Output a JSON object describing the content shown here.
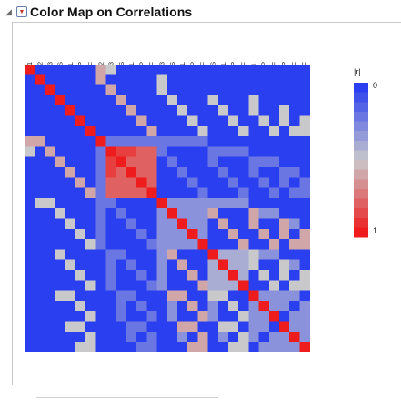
{
  "title": "Color Map on Correlations",
  "chart_data": {
    "type": "heatmap",
    "title": "Color Map on Correlations",
    "legend": {
      "title": "|r|",
      "min_label": "0",
      "max_label": "1",
      "position": "right"
    },
    "colors": {
      "low": "#2a3ff0",
      "mid": "#c9c9cc",
      "high": "#ee1c1c"
    },
    "variables": [
      "A1",
      "A2",
      "A3",
      "BS",
      "BL",
      "P",
      "F",
      "A1*A2",
      "A1*A3",
      "A1*BS",
      "A1*BL",
      "A1*P",
      "A1*F",
      "A2*A3",
      "A2*BS",
      "A2*BL",
      "A2*P",
      "A2*F",
      "A3*BS",
      "A3*BL",
      "A3*P",
      "A3*F",
      "BS*BL",
      "BS*P",
      "BS*F",
      "BL*P",
      "BL*F",
      "P*F"
    ],
    "matrix": [
      [
        1,
        0,
        0,
        0,
        0,
        0,
        0,
        0.6,
        0.5,
        0,
        0,
        0,
        0,
        0,
        0,
        0,
        0,
        0,
        0,
        0,
        0,
        0,
        0,
        0,
        0,
        0,
        0,
        0
      ],
      [
        0,
        1,
        0,
        0,
        0,
        0,
        0,
        0.6,
        0,
        0,
        0,
        0,
        0,
        0.5,
        0,
        0,
        0,
        0,
        0,
        0,
        0,
        0,
        0,
        0,
        0,
        0,
        0,
        0
      ],
      [
        0,
        0,
        1,
        0,
        0,
        0,
        0,
        0,
        0.6,
        0,
        0,
        0,
        0,
        0.5,
        0,
        0,
        0,
        0,
        0,
        0,
        0,
        0,
        0,
        0,
        0,
        0,
        0,
        0
      ],
      [
        0,
        0,
        0,
        1,
        0,
        0,
        0,
        0,
        0,
        0.6,
        0,
        0,
        0,
        0,
        0.5,
        0,
        0,
        0,
        0.5,
        0,
        0,
        0,
        0.5,
        0,
        0,
        0,
        0,
        0
      ],
      [
        0,
        0,
        0,
        0,
        1,
        0,
        0,
        0,
        0,
        0,
        0.6,
        0,
        0,
        0,
        0,
        0.5,
        0,
        0,
        0,
        0.5,
        0,
        0,
        0.5,
        0,
        0,
        0.5,
        0,
        0
      ],
      [
        0,
        0,
        0,
        0,
        0,
        1,
        0,
        0,
        0,
        0,
        0,
        0.6,
        0,
        0,
        0,
        0,
        0.5,
        0,
        0,
        0,
        0.5,
        0,
        0,
        0.5,
        0,
        0.5,
        0,
        0.5
      ],
      [
        0,
        0,
        0,
        0,
        0,
        0,
        1,
        0,
        0,
        0,
        0,
        0,
        0.6,
        0,
        0,
        0,
        0,
        0.5,
        0,
        0,
        0,
        0.5,
        0,
        0,
        0.5,
        0,
        0.5,
        0.5
      ],
      [
        0.6,
        0.6,
        0,
        0,
        0,
        0,
        0,
        1,
        0.2,
        0.2,
        0.2,
        0.2,
        0.2,
        0.2,
        0.2,
        0.2,
        0.2,
        0.2,
        0,
        0,
        0,
        0,
        0,
        0,
        0,
        0,
        0,
        0
      ],
      [
        0.5,
        0,
        0.6,
        0,
        0,
        0,
        0,
        0.2,
        1,
        0.9,
        0.9,
        0.8,
        0.8,
        0.2,
        0,
        0,
        0,
        0,
        0.2,
        0.2,
        0.2,
        0.2,
        0,
        0,
        0,
        0,
        0,
        0
      ],
      [
        0,
        0,
        0,
        0.6,
        0,
        0,
        0,
        0.2,
        0.9,
        1,
        0.8,
        0.8,
        0.8,
        0,
        0.2,
        0,
        0,
        0,
        0.2,
        0,
        0,
        0,
        0.2,
        0.2,
        0.2,
        0,
        0,
        0
      ],
      [
        0,
        0,
        0,
        0,
        0.6,
        0,
        0,
        0.2,
        0.9,
        0.8,
        1,
        0.8,
        0.8,
        0,
        0,
        0.2,
        0,
        0,
        0,
        0.2,
        0,
        0,
        0.2,
        0,
        0,
        0.2,
        0.2,
        0
      ],
      [
        0,
        0,
        0,
        0,
        0,
        0.6,
        0,
        0.2,
        0.8,
        0.8,
        0.8,
        1,
        0.8,
        0,
        0,
        0,
        0.2,
        0,
        0,
        0,
        0.2,
        0,
        0,
        0.2,
        0,
        0.2,
        0,
        0.2
      ],
      [
        0,
        0,
        0,
        0,
        0,
        0,
        0.6,
        0.2,
        0.8,
        0.8,
        0.8,
        0.8,
        1,
        0,
        0,
        0,
        0,
        0.2,
        0,
        0,
        0,
        0.2,
        0,
        0,
        0.2,
        0,
        0.2,
        0.2
      ],
      [
        0,
        0.5,
        0.5,
        0,
        0,
        0,
        0,
        0.2,
        0.2,
        0,
        0,
        0,
        0,
        1,
        0.3,
        0.3,
        0.3,
        0.3,
        0.3,
        0.3,
        0.3,
        0.3,
        0,
        0,
        0,
        0,
        0,
        0
      ],
      [
        0,
        0,
        0,
        0.5,
        0,
        0,
        0,
        0.2,
        0,
        0.2,
        0,
        0,
        0,
        0.3,
        1,
        0.3,
        0.3,
        0.3,
        0.6,
        0,
        0,
        0,
        0.6,
        0.3,
        0.3,
        0,
        0,
        0
      ],
      [
        0,
        0,
        0,
        0,
        0.5,
        0,
        0,
        0.2,
        0,
        0,
        0.2,
        0,
        0,
        0.3,
        0.3,
        1,
        0.3,
        0.3,
        0,
        0.6,
        0,
        0,
        0.6,
        0,
        0,
        0.6,
        0.3,
        0
      ],
      [
        0,
        0,
        0,
        0,
        0,
        0.5,
        0,
        0.2,
        0,
        0,
        0,
        0.2,
        0,
        0.3,
        0.3,
        0.3,
        1,
        0.3,
        0,
        0,
        0.6,
        0,
        0,
        0.6,
        0,
        0.6,
        0,
        0.6
      ],
      [
        0,
        0,
        0,
        0,
        0,
        0,
        0.5,
        0.2,
        0,
        0,
        0,
        0,
        0.2,
        0.3,
        0.3,
        0.3,
        0.3,
        1,
        0,
        0,
        0,
        0.6,
        0,
        0,
        0.6,
        0,
        0.6,
        0.6
      ],
      [
        0,
        0,
        0,
        0.5,
        0,
        0,
        0,
        0,
        0.2,
        0.2,
        0,
        0,
        0,
        0.3,
        0.6,
        0,
        0,
        0,
        1,
        0.4,
        0.4,
        0.4,
        0.5,
        0.3,
        0.3,
        0,
        0,
        0
      ],
      [
        0,
        0,
        0,
        0,
        0.5,
        0,
        0,
        0,
        0.2,
        0,
        0.2,
        0,
        0,
        0.3,
        0,
        0.6,
        0,
        0,
        0.4,
        1,
        0.4,
        0.4,
        0.5,
        0,
        0,
        0.5,
        0.3,
        0
      ],
      [
        0,
        0,
        0,
        0,
        0,
        0.5,
        0,
        0,
        0.2,
        0,
        0,
        0.2,
        0,
        0.3,
        0,
        0,
        0.6,
        0,
        0.4,
        0.4,
        1,
        0.4,
        0,
        0.5,
        0,
        0.5,
        0,
        0.5
      ],
      [
        0,
        0,
        0,
        0,
        0,
        0,
        0.5,
        0,
        0.2,
        0,
        0,
        0,
        0.2,
        0.3,
        0,
        0,
        0,
        0.6,
        0.4,
        0.4,
        0.4,
        1,
        0,
        0,
        0.5,
        0,
        0.5,
        0.5
      ],
      [
        0,
        0,
        0,
        0.5,
        0.5,
        0,
        0,
        0,
        0,
        0.2,
        0.2,
        0,
        0,
        0,
        0.6,
        0.6,
        0,
        0,
        0.5,
        0.5,
        0,
        0,
        1,
        0.3,
        0.3,
        0.3,
        0.3,
        0
      ],
      [
        0,
        0,
        0,
        0,
        0,
        0.5,
        0,
        0,
        0,
        0.2,
        0,
        0.2,
        0,
        0,
        0.3,
        0,
        0.6,
        0,
        0.3,
        0,
        0.5,
        0,
        0.3,
        1,
        0.3,
        0.3,
        0,
        0.3
      ],
      [
        0,
        0,
        0,
        0,
        0,
        0,
        0.5,
        0,
        0,
        0.2,
        0,
        0,
        0.2,
        0,
        0.3,
        0,
        0,
        0.6,
        0.3,
        0,
        0,
        0.5,
        0.3,
        0.3,
        1,
        0,
        0.3,
        0.3
      ],
      [
        0,
        0,
        0,
        0,
        0.5,
        0.5,
        0,
        0,
        0,
        0,
        0.2,
        0.2,
        0,
        0,
        0,
        0.6,
        0.6,
        0,
        0,
        0.5,
        0.5,
        0,
        0.3,
        0.3,
        0,
        1,
        0.3,
        0.3
      ],
      [
        0,
        0,
        0,
        0,
        0,
        0,
        0.5,
        0,
        0,
        0,
        0.2,
        0,
        0.2,
        0,
        0,
        0.3,
        0,
        0.6,
        0,
        0.3,
        0,
        0.5,
        0.3,
        0,
        0.3,
        0.3,
        1,
        0.3
      ],
      [
        0,
        0,
        0,
        0,
        0,
        0.5,
        0.5,
        0,
        0,
        0,
        0,
        0.2,
        0.2,
        0,
        0,
        0,
        0.6,
        0.6,
        0,
        0,
        0.5,
        0.5,
        0,
        0.3,
        0.3,
        0.3,
        0.3,
        1
      ]
    ]
  }
}
